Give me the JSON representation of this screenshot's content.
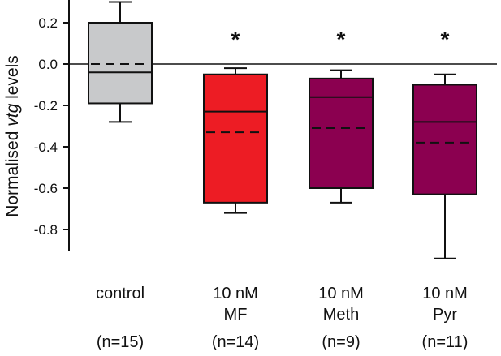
{
  "chart_data": {
    "type": "box",
    "ylabel": "Normalised vtg levels",
    "ylabel_parts": {
      "before": "Normalised ",
      "italic": "vtg",
      "after": " levels"
    },
    "ylim": [
      -0.87,
      0.3
    ],
    "yticks": [
      {
        "value": 0.2,
        "label": "0.2"
      },
      {
        "value": 0.0,
        "label": "0.0"
      },
      {
        "value": -0.2,
        "label": "-0.2"
      },
      {
        "value": -0.4,
        "label": "-0.4"
      },
      {
        "value": -0.6,
        "label": "-0.6"
      },
      {
        "value": -0.8,
        "label": "-0.8"
      }
    ],
    "reference_line": 0.0,
    "grid": false,
    "legend": "none",
    "groups": [
      {
        "label_lines": [
          "control"
        ],
        "n_label": "(n=15)",
        "color": "#c8c9cb",
        "whisker_low": -0.28,
        "q1": -0.19,
        "median": -0.04,
        "mean": 0.0,
        "q3": 0.2,
        "whisker_high": 0.3,
        "significant": false
      },
      {
        "label_lines": [
          "10 nM",
          "MF"
        ],
        "n_label": "(n=14)",
        "color": "#ed1c24",
        "whisker_low": -0.72,
        "q1": -0.67,
        "median": -0.23,
        "mean": -0.33,
        "q3": -0.05,
        "whisker_high": -0.02,
        "significant": true
      },
      {
        "label_lines": [
          "10 nM",
          "Meth"
        ],
        "n_label": "(n=9)",
        "color": "#8b0050",
        "whisker_low": -0.67,
        "q1": -0.6,
        "median": -0.16,
        "mean": -0.31,
        "q3": -0.07,
        "whisker_high": -0.03,
        "significant": true
      },
      {
        "label_lines": [
          "10 nM",
          "Pyr"
        ],
        "n_label": "(n=11)",
        "color": "#8b0050",
        "whisker_low": -0.94,
        "q1": -0.63,
        "median": -0.28,
        "mean": -0.38,
        "q3": -0.1,
        "whisker_high": -0.05,
        "significant": true
      }
    ],
    "significance_marker": "*"
  }
}
